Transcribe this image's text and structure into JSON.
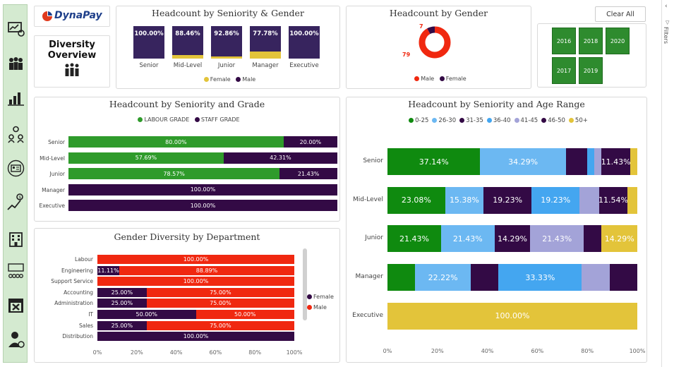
{
  "brand": {
    "name": "DynaPay"
  },
  "page_title_line1": "Diversity",
  "page_title_line2": "Overview",
  "clear_all_label": "Clear All",
  "filters_label": "Filters",
  "colors": {
    "male": "#f02810",
    "female": "#330a45",
    "labour": "#2f9b2b",
    "staff": "#330a45",
    "mini_bar": "#37245e",
    "mini_female": "#e3c43a",
    "slicer": "#2e8b2e"
  },
  "years": [
    "2016",
    "2018",
    "2020",
    "2017",
    "2019"
  ],
  "seniority_gender": {
    "title": "Headcount by Seniority & Gender",
    "legend": [
      "Female",
      "Male"
    ],
    "bars": [
      {
        "label": "Senior",
        "male_pct": "100.00%",
        "female_share": 0
      },
      {
        "label": "Mid-Level",
        "male_pct": "88.46%",
        "female_share": 11.54
      },
      {
        "label": "Junior",
        "male_pct": "92.86%",
        "female_share": 7.14
      },
      {
        "label": "Manager",
        "male_pct": "77.78%",
        "female_share": 22.22
      },
      {
        "label": "Executive",
        "male_pct": "100.00%",
        "female_share": 0
      }
    ]
  },
  "gender_donut": {
    "title": "Headcount by Gender",
    "male_count": "79",
    "female_count": "7",
    "male": 79,
    "female": 7,
    "legend": [
      "Male",
      "Female"
    ]
  },
  "seniority_grade": {
    "title": "Headcount by Seniority and Grade",
    "legend": [
      "LABOUR GRADE",
      "STAFF GRADE"
    ],
    "rows": [
      {
        "label": "Senior",
        "labour": 80.0,
        "labour_text": "80.00%",
        "staff_text": "20.00%"
      },
      {
        "label": "Mid-Level",
        "labour": 57.69,
        "labour_text": "57.69%",
        "staff_text": "42.31%"
      },
      {
        "label": "Junior",
        "labour": 78.57,
        "labour_text": "78.57%",
        "staff_text": "21.43%"
      },
      {
        "label": "Manager",
        "labour": 0,
        "labour_text": "",
        "staff_text": "100.00%"
      },
      {
        "label": "Executive",
        "labour": 0,
        "labour_text": "",
        "staff_text": "100.00%"
      }
    ]
  },
  "gender_dept": {
    "title": "Gender Diversity by Department",
    "legend": [
      "Female",
      "Male"
    ],
    "x_ticks": [
      "0%",
      "20%",
      "40%",
      "60%",
      "80%",
      "100%"
    ],
    "rows": [
      {
        "label": "Labour",
        "female": 0,
        "female_text": "",
        "male_text": "100.00%"
      },
      {
        "label": "Engineering",
        "female": 11.11,
        "female_text": "11.11%",
        "male_text": "88.89%"
      },
      {
        "label": "Support Service",
        "female": 0,
        "female_text": "",
        "male_text": "100.00%"
      },
      {
        "label": "Accounting",
        "female": 25.0,
        "female_text": "25.00%",
        "male_text": "75.00%"
      },
      {
        "label": "Administration",
        "female": 25.0,
        "female_text": "25.00%",
        "male_text": "75.00%"
      },
      {
        "label": "IT",
        "female": 50.0,
        "female_text": "50.00%",
        "male_text": "50.00%"
      },
      {
        "label": "Sales",
        "female": 25.0,
        "female_text": "25.00%",
        "male_text": "75.00%"
      },
      {
        "label": "Distribution",
        "female": 100.0,
        "female_text": "100.00%",
        "male_text": ""
      }
    ]
  },
  "age_range": {
    "title": "Headcount by Seniority and Age Range",
    "x_ticks": [
      "0%",
      "20%",
      "40%",
      "60%",
      "80%",
      "100%"
    ],
    "series": [
      {
        "name": "0-25",
        "color": "#0f8a0f"
      },
      {
        "name": "26-30",
        "color": "#6cb8f2"
      },
      {
        "name": "31-35",
        "color": "#330a45"
      },
      {
        "name": "36-40",
        "color": "#44a6f0"
      },
      {
        "name": "41-45",
        "color": "#a3a3d8"
      },
      {
        "name": "46-50",
        "color": "#330a45"
      },
      {
        "name": "50+",
        "color": "#e3c43a"
      }
    ],
    "rows": [
      {
        "label": "Senior",
        "values": [
          37.14,
          34.29,
          8.57,
          2.86,
          2.86,
          11.43,
          2.86
        ],
        "texts": [
          "37.14%",
          "34.29%",
          "",
          "",
          "",
          "11.43%",
          ""
        ]
      },
      {
        "label": "Mid-Level",
        "values": [
          23.08,
          15.38,
          19.23,
          19.23,
          7.69,
          11.54,
          3.85
        ],
        "texts": [
          "23.08%",
          "15.38%",
          "19.23%",
          "19.23%",
          "",
          "11.54%",
          ""
        ]
      },
      {
        "label": "Junior",
        "values": [
          21.43,
          21.43,
          14.29,
          0,
          21.43,
          7.14,
          14.29
        ],
        "texts": [
          "21.43%",
          "21.43%",
          "14.29%",
          "",
          "21.43%",
          "",
          "14.29%"
        ]
      },
      {
        "label": "Manager",
        "values": [
          11.11,
          22.22,
          11.11,
          33.33,
          11.11,
          11.11,
          0
        ],
        "texts": [
          "",
          "22.22%",
          "",
          "33.33%",
          "",
          "",
          ""
        ]
      },
      {
        "label": "Executive",
        "values": [
          0,
          0,
          0,
          0,
          0,
          0,
          100
        ],
        "texts": [
          "",
          "",
          "",
          "",
          "",
          "",
          "100.00%"
        ]
      }
    ]
  }
}
